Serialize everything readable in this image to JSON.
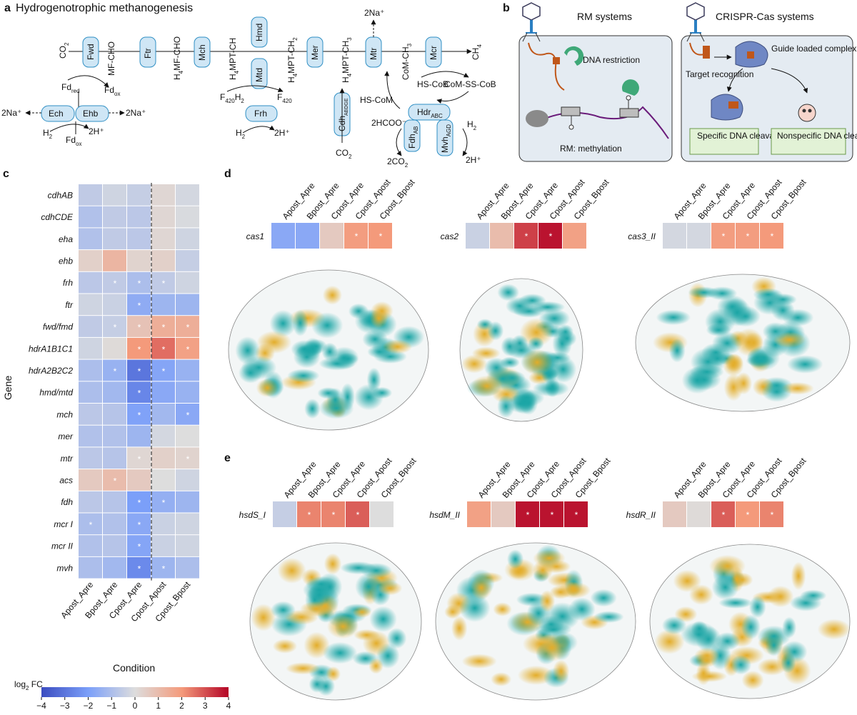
{
  "panel_a": {
    "label": "a",
    "title": "Hydrogenotrophic methanogenesis",
    "enzymes": {
      "fwd": "Fwd",
      "ftr": "Ftr",
      "mch": "Mch",
      "hmd": "Hmd",
      "mtd": "Mtd",
      "mer": "Mer",
      "mtr": "Mtr",
      "mcr": "Mcr",
      "ech": "Ech",
      "ehb": "Ehb",
      "frh": "Frh",
      "cdh": "Cdh",
      "cdh_sub": "ABDGE",
      "hdr": "Hdr",
      "hdr_sub": "ABC",
      "fdh": "Fdh",
      "fdh_sub": "AB",
      "mvh": "Mvh",
      "mvh_sub": "AGD"
    },
    "metabolites": {
      "co2": "CO",
      "co2_sub": "2",
      "mfcho": "MF-CHO",
      "h4mfcho_pre": "H",
      "h4mfcho_sub": "4",
      "h4mfcho_post": "MF-CHO",
      "h4mptch_pre": "H",
      "h4mptch_sub": "4",
      "h4mptch_post": "MPT-CH",
      "h4mptch2_pre": "H",
      "h4mptch2_sub": "4",
      "h4mptch2_post": "MPT-CH",
      "h4mptch2_sub2": "2",
      "h4mptch3_pre": "H",
      "h4mptch3_sub": "4",
      "h4mptch3_post": "MPT-CH",
      "h4mptch3_sub2": "3",
      "comch3": "CoM-CH",
      "comch3_sub": "3",
      "ch4": "CH",
      "ch4_sub": "4",
      "na_top": "2Na⁺",
      "fd": "Fd",
      "fd_red": "red",
      "fd_ox": "ox",
      "na_left": "2Na⁺",
      "na_right": "2Na⁺",
      "h2": "H",
      "h2_sub": "2",
      "hplus": "2H⁺",
      "f420": "F",
      "f420_sub": "420",
      "f420h2_post": "H",
      "f420h2_sub2": "2",
      "hscom": "HS-CoM",
      "hscob": "HS-CoB",
      "comsscob": "CoM-SS-CoB",
      "hcoo": "2HCOO⁻",
      "co2_2": "2CO",
      "co2_2_sub": "2"
    }
  },
  "panel_b": {
    "label": "b",
    "rm_title": "RM systems",
    "crispr_title": "CRISPR-Cas systems",
    "dna_restriction": "DNA restriction",
    "rm_methylation": "RM: methylation",
    "target_recognition": "Target recognition",
    "guide_loaded": "Guide loaded complex",
    "specific_cleavage": "Specific DNA cleavage",
    "nonspecific_cleavage": "Nonspecific DNA cleavage"
  },
  "panel_c": {
    "label": "c",
    "ylabel": "Gene",
    "xlabel": "Condition",
    "colorbar_label": "log",
    "colorbar_label_sub": "2",
    "colorbar_label_post": " FC"
  },
  "panel_d": {
    "label": "d"
  },
  "panel_e": {
    "label": "e"
  },
  "chart_data": [
    {
      "type": "heatmap",
      "title": "",
      "xlabel": "Condition",
      "ylabel": "Gene",
      "columns": [
        "Apost_Apre",
        "Bpost_Apre",
        "Cpost_Apre",
        "Cpost_Apost",
        "Cpost_Bpost"
      ],
      "rows": [
        "cdhAB",
        "cdhCDE",
        "eha",
        "ehb",
        "frh",
        "ftr",
        "fwd/fmd",
        "hdrA1B1C1",
        "hdrA2B2C2",
        "hmd/mtd",
        "mch",
        "mer",
        "mtr",
        "acs",
        "fdh",
        "mcr I",
        "mcr II",
        "mvh"
      ],
      "values": [
        [
          -0.6,
          -0.3,
          -0.5,
          0.2,
          -0.2
        ],
        [
          -0.9,
          -0.6,
          -0.7,
          0.2,
          -0.1
        ],
        [
          -0.9,
          -0.6,
          -0.7,
          0.2,
          -0.3
        ],
        [
          0.4,
          1.2,
          0.3,
          0.4,
          -0.5
        ],
        [
          -0.7,
          -0.6,
          -1.0,
          -0.6,
          -0.3
        ],
        [
          -0.3,
          -0.4,
          -1.6,
          -1.3,
          -1.3
        ],
        [
          -0.6,
          -0.5,
          0.8,
          1.4,
          1.4
        ],
        [
          -0.3,
          0.1,
          2.0,
          2.6,
          1.8
        ],
        [
          -1.0,
          -1.4,
          -3.0,
          -1.8,
          -1.4
        ],
        [
          -1.0,
          -1.2,
          -2.6,
          -1.7,
          -1.4
        ],
        [
          -0.7,
          -0.8,
          -1.9,
          -1.2,
          -1.7
        ],
        [
          -0.9,
          -0.9,
          -1.3,
          -0.2,
          0.0
        ],
        [
          -0.7,
          -0.8,
          0.2,
          0.4,
          0.3
        ],
        [
          0.6,
          1.0,
          0.6,
          0.0,
          -0.3
        ],
        [
          -0.7,
          -0.8,
          -2.0,
          -1.5,
          -1.3
        ],
        [
          -1.0,
          -0.9,
          -1.7,
          -0.4,
          -0.3
        ],
        [
          -0.9,
          -0.8,
          -1.8,
          -0.4,
          -0.3
        ],
        [
          -1.0,
          -1.2,
          -2.5,
          -1.3,
          -1.0
        ]
      ],
      "significant": [
        [
          0,
          0,
          0,
          0,
          0
        ],
        [
          0,
          0,
          0,
          0,
          0
        ],
        [
          0,
          0,
          0,
          0,
          0
        ],
        [
          0,
          0,
          0,
          0,
          0
        ],
        [
          0,
          1,
          1,
          1,
          0
        ],
        [
          0,
          0,
          1,
          0,
          0
        ],
        [
          0,
          1,
          1,
          1,
          1
        ],
        [
          0,
          0,
          1,
          1,
          1
        ],
        [
          0,
          1,
          1,
          1,
          0
        ],
        [
          0,
          0,
          1,
          0,
          0
        ],
        [
          0,
          0,
          1,
          0,
          1
        ],
        [
          0,
          0,
          0,
          0,
          0
        ],
        [
          0,
          0,
          1,
          0,
          1
        ],
        [
          0,
          1,
          0,
          0,
          0
        ],
        [
          0,
          0,
          1,
          1,
          0
        ],
        [
          1,
          0,
          1,
          0,
          0
        ],
        [
          0,
          0,
          1,
          0,
          0
        ],
        [
          0,
          0,
          1,
          1,
          0
        ]
      ],
      "significance_marker": "*",
      "divider_after_column": "Cpost_Apre",
      "colorbar": {
        "label": "log2 FC",
        "range": [
          -4,
          4
        ],
        "ticks": [
          "−4",
          "−3",
          "−2",
          "−1",
          "0",
          "1",
          "2",
          "3",
          "4"
        ]
      }
    },
    {
      "type": "heatmap",
      "panel": "d",
      "columns": [
        "Apost_Apre",
        "Bpost_Apre",
        "Cpost_Apre",
        "Cpost_Apost",
        "Cpost_Bpost"
      ],
      "rows": [
        "cas1",
        "cas2",
        "cas3_II"
      ],
      "values": [
        [
          -1.7,
          -1.7,
          0.6,
          1.9,
          2.0
        ],
        [
          -0.4,
          1.0,
          3.2,
          3.8,
          1.8
        ],
        [
          -0.2,
          -0.2,
          1.9,
          1.9,
          2.0
        ]
      ],
      "significant": [
        [
          0,
          0,
          0,
          1,
          1
        ],
        [
          0,
          0,
          1,
          1,
          0
        ],
        [
          0,
          0,
          1,
          1,
          1
        ]
      ]
    },
    {
      "type": "heatmap",
      "panel": "e",
      "columns": [
        "Apost_Apre",
        "Bpost_Apre",
        "Cpost_Apre",
        "Cpost_Apost",
        "Cpost_Bpost"
      ],
      "rows": [
        "hsdS_I",
        "hsdM_II",
        "hsdR_II"
      ],
      "values": [
        [
          -0.5,
          2.3,
          2.3,
          2.8,
          0.0
        ],
        [
          1.8,
          0.6,
          3.8,
          3.8,
          3.8
        ],
        [
          0.6,
          0.1,
          2.8,
          2.0,
          2.3
        ]
      ],
      "significant": [
        [
          0,
          1,
          1,
          1,
          0
        ],
        [
          0,
          0,
          1,
          1,
          1
        ],
        [
          0,
          0,
          1,
          1,
          1
        ]
      ]
    }
  ]
}
